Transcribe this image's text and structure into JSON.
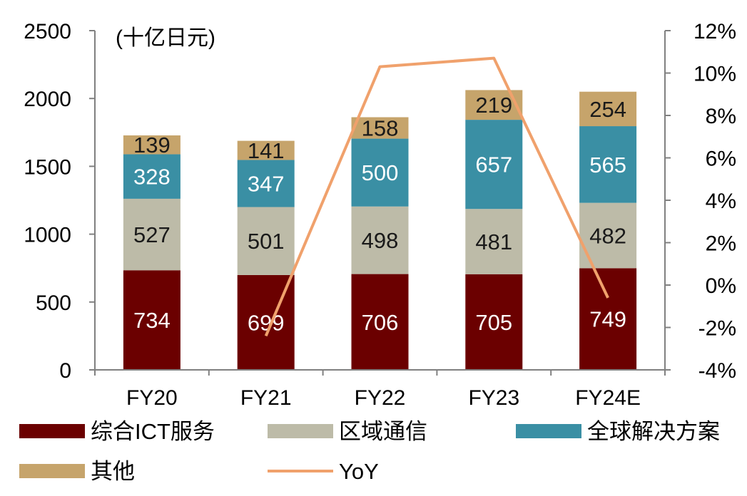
{
  "chart_data": {
    "type": "bar",
    "stacked": true,
    "unit_label": "(十亿日元)",
    "categories": [
      "FY20",
      "FY21",
      "FY22",
      "FY23",
      "FY24E"
    ],
    "series": [
      {
        "name": "综合ICT服务",
        "color": "#6B0000",
        "label_color": "#ffffff",
        "values": [
          734,
          699,
          706,
          705,
          749
        ]
      },
      {
        "name": "区域通信",
        "color": "#BDBBA8",
        "label_color": "#1a1a1a",
        "values": [
          527,
          501,
          498,
          481,
          482
        ]
      },
      {
        "name": "全球解决方案",
        "color": "#3A8FA4",
        "label_color": "#ffffff",
        "values": [
          328,
          347,
          500,
          657,
          565
        ]
      },
      {
        "name": "其他",
        "color": "#C6A46B",
        "label_color": "#1a1a1a",
        "values": [
          139,
          141,
          158,
          219,
          254
        ]
      }
    ],
    "line_series": {
      "name": "YoY",
      "color": "#F0A16C",
      "axis": "right",
      "values": [
        null,
        -2.4,
        10.3,
        10.7,
        -0.6
      ]
    },
    "y_left": {
      "lim": [
        0,
        2500
      ],
      "ticks": [
        "0",
        "500",
        "1000",
        "1500",
        "2000",
        "2500"
      ]
    },
    "y_right": {
      "lim": [
        -4,
        12
      ],
      "ticks": [
        "-4%",
        "-2%",
        "0%",
        "2%",
        "4%",
        "6%",
        "8%",
        "10%",
        "12%"
      ]
    },
    "legend_position": "bottom"
  }
}
